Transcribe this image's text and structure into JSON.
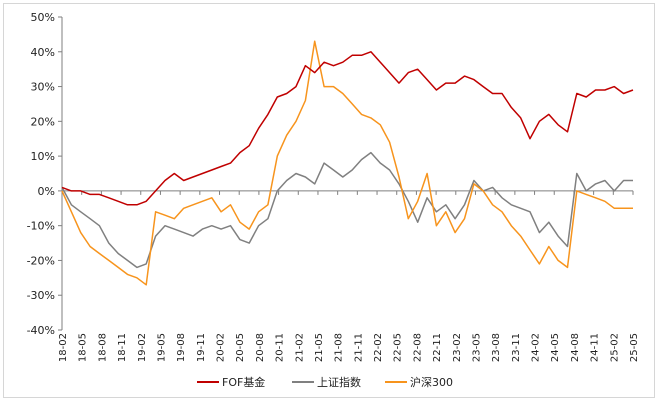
{
  "chart_data": {
    "type": "line",
    "y_format": "percent",
    "ylim": [
      -40,
      50
    ],
    "y_ticks": [
      50,
      40,
      30,
      20,
      10,
      0,
      -10,
      -20,
      -30,
      -40
    ],
    "y_tick_labels": [
      "50%",
      "40%",
      "30%",
      "20%",
      "10%",
      "0%",
      "-10%",
      "-20%",
      "-30%",
      "-40%"
    ],
    "x_tick_labels": [
      "18-02",
      "18-05",
      "18-08",
      "18-11",
      "19-02",
      "19-05",
      "19-08",
      "19-11",
      "20-02",
      "20-05",
      "20-08",
      "20-11",
      "21-02",
      "21-05",
      "21-08",
      "21-11",
      "22-02",
      "22-05",
      "22-08",
      "22-11",
      "23-02",
      "23-05",
      "23-08",
      "23-11",
      "24-02",
      "24-05",
      "24-08",
      "24-11",
      "25-02",
      "25-05"
    ],
    "grid": false,
    "legend_position": "bottom",
    "series": [
      {
        "name": "FOF基金",
        "color": "#c00000",
        "values": [
          1,
          0,
          0,
          -1,
          -1,
          -2,
          -3,
          -4,
          -4,
          -3,
          0,
          3,
          5,
          3,
          4,
          5,
          6,
          7,
          8,
          11,
          13,
          18,
          22,
          27,
          28,
          30,
          36,
          34,
          37,
          36,
          37,
          39,
          39,
          40,
          37,
          34,
          31,
          34,
          35,
          32,
          29,
          31,
          31,
          33,
          32,
          30,
          28,
          28,
          24,
          21,
          15,
          20,
          22,
          19,
          17,
          28,
          27,
          29,
          29,
          30,
          28,
          29
        ]
      },
      {
        "name": "上证指数",
        "color": "#808080",
        "values": [
          1,
          -4,
          -6,
          -8,
          -10,
          -15,
          -18,
          -20,
          -22,
          -21,
          -13,
          -10,
          -11,
          -12,
          -13,
          -11,
          -10,
          -11,
          -10,
          -14,
          -15,
          -10,
          -8,
          0,
          3,
          5,
          4,
          2,
          8,
          6,
          4,
          6,
          9,
          11,
          8,
          6,
          2,
          -3,
          -9,
          -2,
          -6,
          -4,
          -8,
          -4,
          3,
          0,
          1,
          -2,
          -4,
          -5,
          -6,
          -12,
          -9,
          -13,
          -16,
          5,
          0,
          2,
          3,
          0,
          3,
          3
        ]
      },
      {
        "name": "沪深300",
        "color": "#f7941d",
        "values": [
          0,
          -6,
          -12,
          -16,
          -18,
          -20,
          -22,
          -24,
          -25,
          -27,
          -6,
          -7,
          -8,
          -5,
          -4,
          -3,
          -2,
          -6,
          -4,
          -9,
          -11,
          -6,
          -4,
          10,
          16,
          20,
          26,
          43,
          30,
          30,
          28,
          25,
          22,
          21,
          19,
          14,
          4,
          -8,
          -3,
          5,
          -10,
          -6,
          -12,
          -8,
          2,
          0,
          -4,
          -6,
          -10,
          -13,
          -17,
          -21,
          -16,
          -20,
          -22,
          0,
          -1,
          -2,
          -3,
          -5,
          -5,
          -5
        ]
      }
    ]
  }
}
